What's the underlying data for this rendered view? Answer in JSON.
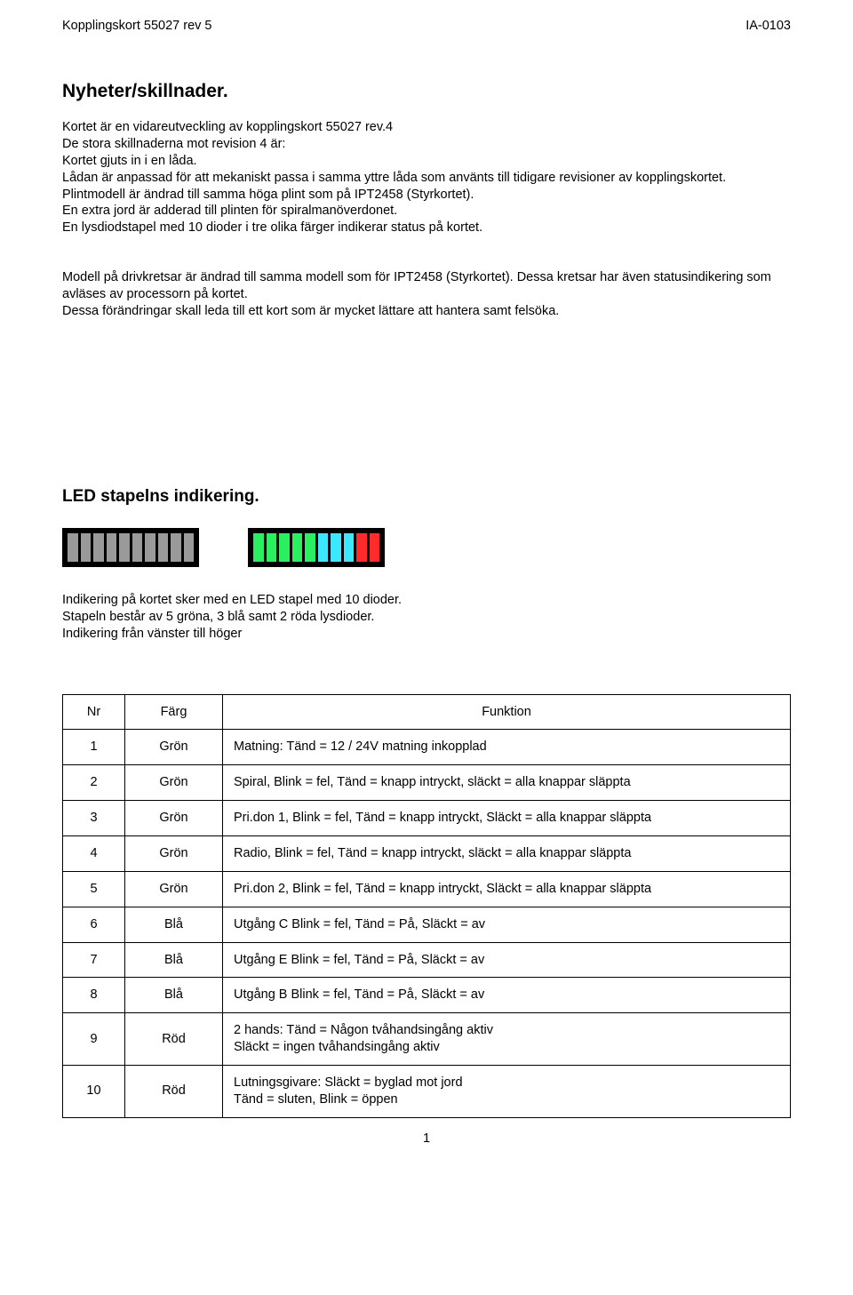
{
  "header": {
    "left": "Kopplingskort 55027 rev 5",
    "right": "IA-0103"
  },
  "section1": {
    "title": "Nyheter/skillnader.",
    "p1": "Kortet är en vidareutveckling av kopplingskort 55027 rev.4\nDe stora skillnaderna mot revision 4 är:\nKortet gjuts in i en låda.\nLådan är anpassad för att mekaniskt passa i samma yttre låda som använts till tidigare revisioner av kopplingskortet.\nPlintmodell är ändrad till samma höga plint som på IPT2458 (Styrkortet).\nEn extra jord är adderad till plinten för spiralmanöverdonet.\nEn lysdiodstapel med 10 dioder i tre olika färger indikerar status på kortet.",
    "p2": "Modell på drivkretsar är ändrad till samma modell som för IPT2458 (Styrkortet). Dessa kretsar har även statusindikering som avläses av processorn på kortet.\nDessa förändringar skall leda till ett kort som är mycket lättare att hantera samt felsöka."
  },
  "section2": {
    "title": "LED stapelns indikering.",
    "strip_off": {
      "bg": "#000000",
      "colors": [
        "#9a9a9a",
        "#9a9a9a",
        "#9a9a9a",
        "#9a9a9a",
        "#9a9a9a",
        "#9a9a9a",
        "#9a9a9a",
        "#9a9a9a",
        "#9a9a9a",
        "#9a9a9a"
      ]
    },
    "strip_on": {
      "bg": "#000000",
      "colors": [
        "#2af060",
        "#2af060",
        "#2af060",
        "#2af060",
        "#2af060",
        "#3be8ff",
        "#3be8ff",
        "#3be8ff",
        "#ff2a2a",
        "#ff2a2a"
      ]
    },
    "intro": "Indikering på kortet sker med en LED stapel med 10 dioder.\nStapeln består av 5 gröna, 3 blå samt 2 röda lysdioder.\nIndikering från vänster till höger"
  },
  "table": {
    "headers": {
      "nr": "Nr",
      "color": "Färg",
      "fn": "Funktion"
    },
    "rows": [
      {
        "nr": "1",
        "color": "Grön",
        "fn": "Matning: Tänd = 12 / 24V matning inkopplad"
      },
      {
        "nr": "2",
        "color": "Grön",
        "fn": "Spiral, Blink = fel, Tänd = knapp intryckt, släckt = alla knappar släppta"
      },
      {
        "nr": "3",
        "color": "Grön",
        "fn": "Pri.don 1, Blink = fel, Tänd = knapp intryckt, Släckt = alla knappar släppta"
      },
      {
        "nr": "4",
        "color": "Grön",
        "fn": "Radio, Blink = fel, Tänd = knapp intryckt, släckt = alla knappar släppta"
      },
      {
        "nr": "5",
        "color": "Grön",
        "fn": "Pri.don 2, Blink = fel, Tänd = knapp intryckt, Släckt = alla knappar släppta"
      },
      {
        "nr": "6",
        "color": "Blå",
        "fn": "Utgång C Blink = fel, Tänd = På, Släckt = av"
      },
      {
        "nr": "7",
        "color": "Blå",
        "fn": "Utgång E Blink = fel, Tänd = På, Släckt = av"
      },
      {
        "nr": "8",
        "color": "Blå",
        "fn": "Utgång B Blink = fel, Tänd = På, Släckt = av"
      },
      {
        "nr": "9",
        "color": "Röd",
        "fn": "2 hands: Tänd = Någon tvåhandsingång aktiv\nSläckt = ingen tvåhandsingång aktiv"
      },
      {
        "nr": "10",
        "color": "Röd",
        "fn": "Lutningsgivare: Släckt = byglad mot jord\nTänd = sluten, Blink = öppen"
      }
    ]
  },
  "page_num": "1"
}
